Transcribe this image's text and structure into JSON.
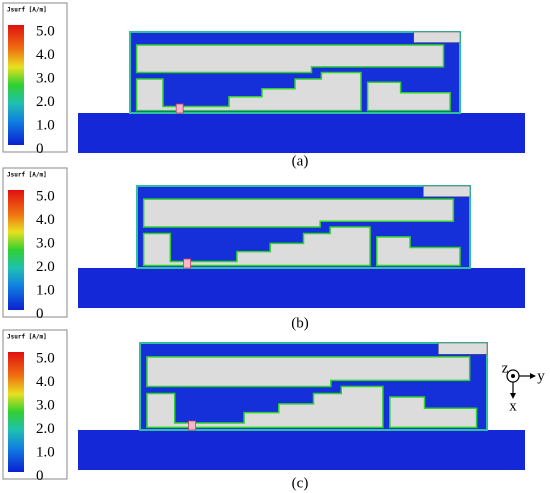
{
  "panels": [
    {
      "legend_title": "Jsurf [A/m]",
      "legend_labels": [
        "5.0",
        "4.0",
        "3.0",
        "2.0",
        "1.0",
        "0"
      ],
      "caption": "(a)"
    },
    {
      "legend_title": "Jsurf [A/m]",
      "legend_labels": [
        "5.0",
        "4.0",
        "3.0",
        "2.0",
        "1.0",
        "0"
      ],
      "caption": "(b)"
    },
    {
      "legend_title": "Jsurf [A/m]",
      "legend_labels": [
        "5.0",
        "4.0",
        "3.0",
        "2.0",
        "1.0",
        "0"
      ],
      "caption": "(c)"
    }
  ],
  "axes": {
    "z": "z",
    "y": "y",
    "x": "x"
  }
}
